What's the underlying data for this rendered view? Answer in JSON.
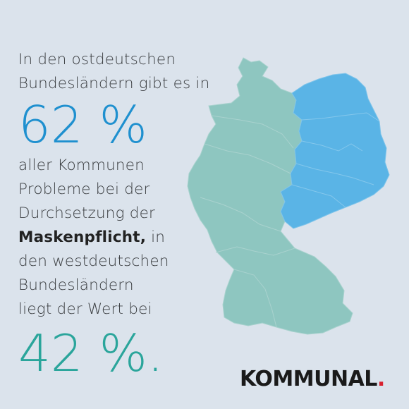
{
  "headline": {
    "line1": "In den ostdeutschen",
    "line2": "Bundesländern gibt es in",
    "east_value": "62 %",
    "line3": "aller Kommunen",
    "line4": "Probleme bei der",
    "line5": "Durchsetzung der",
    "line6_bold": "Maskenpflicht,",
    "line6_rest": " in",
    "line7": "den westdeutschen",
    "line8": "Bundesländern",
    "line9": "liegt der Wert bei",
    "west_value": "42 %."
  },
  "logo": {
    "text": "KOMMUNAL",
    "dot": "."
  },
  "colors": {
    "background": "#dbe3ec",
    "west_fill": "#8ec6c0",
    "east_fill": "#5ab4e6",
    "border": "#a9d2ce",
    "east_text": "#1f90cf",
    "west_text": "#2aa59b",
    "logo_dot": "#d8212f"
  }
}
